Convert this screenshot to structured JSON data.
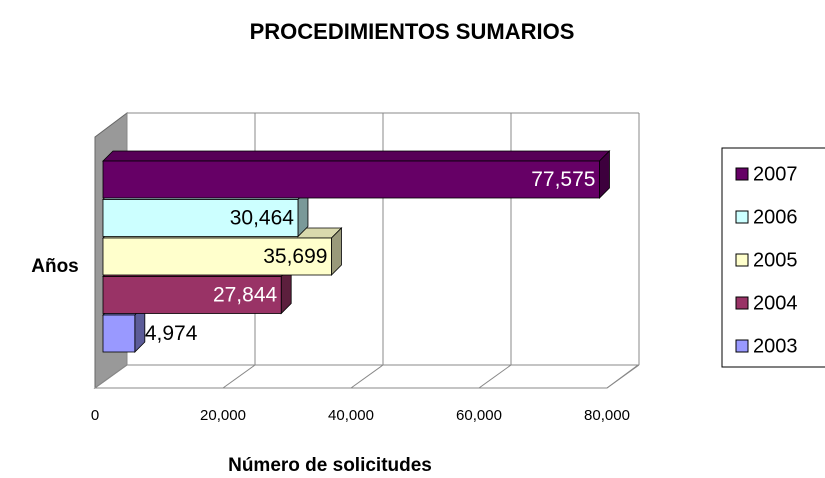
{
  "chart_data": {
    "type": "bar3d",
    "title": "PROCEDIMIENTOS SUMARIOS",
    "xlabel": "Número de solicitudes",
    "ylabel": "Años",
    "series": [
      {
        "name": "2003",
        "color": "#9999ff",
        "values": [
          4974
        ],
        "value_labels": [
          "4,974"
        ]
      },
      {
        "name": "2004",
        "color": "#993366",
        "values": [
          27844
        ],
        "value_labels": [
          "27,844"
        ]
      },
      {
        "name": "2005",
        "color": "#ffffcc",
        "values": [
          35699
        ],
        "value_labels": [
          "35,699"
        ]
      },
      {
        "name": "2006",
        "color": "#ccffff",
        "values": [
          30464
        ],
        "value_labels": [
          "30,464"
        ]
      },
      {
        "name": "2007",
        "color": "#660066",
        "values": [
          77575
        ],
        "value_labels": [
          "77,575"
        ]
      }
    ],
    "xlim": [
      0,
      80000
    ],
    "xticks": [
      0,
      {
        "value": 20000,
        "label": "20,000"
      },
      {
        "value": 40000,
        "label": "40,000"
      },
      {
        "value": 60000,
        "label": "60,000"
      },
      {
        "value": 80000,
        "label": "80,000"
      }
    ],
    "grid": true,
    "legend": "right"
  }
}
